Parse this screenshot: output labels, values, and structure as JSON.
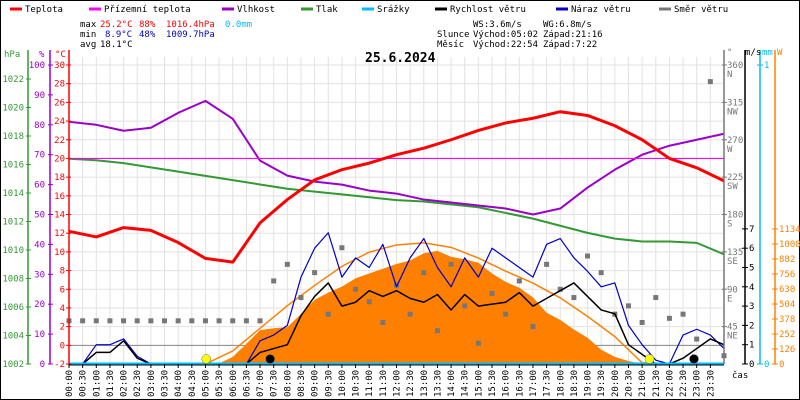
{
  "legend": [
    {
      "label": "Teplota",
      "color": "#ff0000"
    },
    {
      "label": "Přízemní teplota",
      "color": "#ff00ff"
    },
    {
      "label": "Vlhkost",
      "color": "#9900cc"
    },
    {
      "label": "Tlak",
      "color": "#339933"
    },
    {
      "label": "Srážky",
      "color": "#00bbff"
    },
    {
      "label": "Rychlost větru",
      "color": "#000000"
    },
    {
      "label": "Náraz větru",
      "color": "#0000cc"
    },
    {
      "label": "Směr větru",
      "color": "#777777"
    }
  ],
  "stats": {
    "max_label": "max",
    "max_temp": "25.2°C",
    "max_hum": "88%",
    "max_press": "1016.4hPa",
    "max_rain": "0.0mm",
    "min_label": "min",
    "min_temp": "8.9°C",
    "min_hum": "48%",
    "min_press": "1009.7hPa",
    "avg_label": "avg",
    "avg_temp": "18.1°C",
    "ws": "WS:3.6m/s",
    "wg": "WG:6.8m/s",
    "sun_label": "Slunce",
    "sunrise": "Východ:05:02",
    "sunset": "Západ:21:16",
    "moon_label": "Měsíc",
    "moonrise": "Východ:22:54",
    "moonset": "Západ:7:22"
  },
  "chart_data": {
    "type": "line",
    "title": "25.6.2024",
    "xlabel": "čas",
    "x_ticks": [
      "00:00",
      "00:30",
      "01:00",
      "01:30",
      "02:00",
      "02:30",
      "03:00",
      "03:30",
      "04:00",
      "04:30",
      "05:00",
      "05:30",
      "06:00",
      "06:30",
      "07:00",
      "07:30",
      "08:00",
      "08:30",
      "09:00",
      "09:30",
      "10:00",
      "10:30",
      "11:00",
      "11:30",
      "12:00",
      "12:30",
      "13:00",
      "13:30",
      "14:00",
      "14:30",
      "15:00",
      "15:30",
      "16:00",
      "16:30",
      "17:00",
      "17:30",
      "18:00",
      "18:30",
      "19:00",
      "19:30",
      "20:00",
      "20:30",
      "21:00",
      "21:30",
      "22:00",
      "22:30",
      "23:00",
      "23:30"
    ],
    "axes": {
      "pressure": {
        "unit": "hPa",
        "range": [
          1002,
          1022
        ],
        "ticks": [
          1002,
          1004,
          1006,
          1008,
          1010,
          1012,
          1014,
          1016,
          1018,
          1020,
          1022
        ],
        "color": "#339933"
      },
      "humidity": {
        "unit": "%",
        "range": [
          0,
          100
        ],
        "ticks": [
          0,
          10,
          20,
          30,
          40,
          50,
          60,
          70,
          80,
          90,
          100
        ],
        "color": "#9900cc"
      },
      "temperature": {
        "unit": "°C",
        "range": [
          -2,
          30
        ],
        "ticks": [
          -2,
          0,
          2,
          4,
          6,
          8,
          10,
          12,
          14,
          16,
          18,
          20,
          22,
          24,
          26,
          28,
          30
        ],
        "color": "#ff0000"
      },
      "direction": {
        "unit": "°",
        "range": [
          0,
          360
        ],
        "ticks": [
          {
            "v": 45,
            "l": "45",
            "d": "NE"
          },
          {
            "v": 90,
            "l": "90",
            "d": "E"
          },
          {
            "v": 135,
            "l": "135",
            "d": "SE"
          },
          {
            "v": 180,
            "l": "180",
            "d": "S"
          },
          {
            "v": 225,
            "l": "225",
            "d": "SW"
          },
          {
            "v": 270,
            "l": "270",
            "d": "W"
          },
          {
            "v": 315,
            "l": "315",
            "d": "NW"
          },
          {
            "v": 360,
            "l": "360",
            "d": "N"
          }
        ],
        "color": "#777777"
      },
      "wind": {
        "unit": "m/s",
        "range": [
          0,
          7
        ],
        "ticks": [
          0,
          1,
          2,
          3,
          4,
          5,
          6,
          7
        ],
        "color": "#000000"
      },
      "rain": {
        "unit": "mm",
        "range": [
          0,
          1
        ],
        "ticks": [
          0,
          1
        ],
        "color": "#00bbff"
      },
      "solar": {
        "unit": "W",
        "range": [
          0,
          1134
        ],
        "ticks": [
          0,
          126,
          252,
          378,
          504,
          630,
          756,
          882,
          1008,
          1134
        ],
        "color": "#ff8000"
      }
    },
    "series": [
      {
        "name": "Teplota",
        "axis": "temperature",
        "step_h": 1,
        "values": [
          12.2,
          11.6,
          12.6,
          12.3,
          11.0,
          9.3,
          8.9,
          13.1,
          15.6,
          17.7,
          18.8,
          19.5,
          20.4,
          21.1,
          22.0,
          23.0,
          23.8,
          24.3,
          25.0,
          24.6,
          23.5,
          22.0,
          20.0,
          19.0,
          17.6
        ]
      },
      {
        "name": "Přízemní teplota",
        "axis": "temperature",
        "step_h": 24,
        "values": [
          20,
          20
        ]
      },
      {
        "name": "Vlhkost",
        "axis": "humidity",
        "step_h": 1,
        "values": [
          81,
          80,
          78,
          79,
          84,
          88,
          82,
          68,
          63,
          61,
          60,
          58,
          57,
          55,
          54,
          53,
          52,
          50,
          52,
          59,
          65,
          70,
          73,
          75,
          77
        ]
      },
      {
        "name": "Tlak",
        "axis": "pressure",
        "step_h": 1,
        "values": [
          1016.4,
          1016.3,
          1016.1,
          1015.8,
          1015.5,
          1015.2,
          1014.9,
          1014.6,
          1014.3,
          1014.1,
          1013.9,
          1013.7,
          1013.5,
          1013.4,
          1013.2,
          1013.0,
          1012.6,
          1012.2,
          1011.7,
          1011.2,
          1010.8,
          1010.6,
          1010.6,
          1010.5,
          1009.7
        ]
      },
      {
        "name": "Srážky",
        "axis": "rain",
        "step_h": 24,
        "values": [
          0,
          0
        ]
      },
      {
        "name": "Rychlost větru",
        "axis": "wind",
        "step_h": 0.5,
        "values": [
          0,
          0,
          0.6,
          0.6,
          1.2,
          0.3,
          0,
          0,
          0,
          0,
          0,
          0,
          0,
          0,
          0.6,
          0.8,
          1.0,
          2.5,
          3.5,
          4.2,
          3.0,
          3.2,
          3.8,
          3.5,
          3.8,
          3.4,
          3.2,
          3.6,
          2.8,
          3.6,
          3.0,
          3.1,
          3.2,
          3.7,
          3.0,
          3.4,
          3.8,
          4.2,
          3.5,
          2.8,
          2.6,
          1.0,
          0.5,
          0,
          0,
          0.3,
          0.8,
          1.3,
          1.0
        ]
      },
      {
        "name": "Náraz větru",
        "axis": "wind",
        "step_h": 0.5,
        "values": [
          0,
          0,
          1.0,
          1.0,
          1.3,
          0.4,
          0,
          0,
          0,
          0,
          0,
          0,
          0,
          0,
          1.2,
          1.5,
          2.0,
          4.5,
          6.0,
          6.8,
          4.5,
          5.5,
          5.0,
          6.2,
          4.0,
          5.5,
          6.5,
          5.0,
          4.0,
          5.5,
          4.5,
          6.0,
          5.5,
          5.0,
          4.5,
          6.2,
          6.5,
          5.5,
          4.8,
          4.0,
          4.2,
          2.0,
          1.0,
          0.2,
          0,
          1.5,
          1.8,
          1.5,
          0.8
        ]
      },
      {
        "name": "Směr větru",
        "axis": "direction",
        "step_h": 0.5,
        "values": [
          52,
          52,
          52,
          52,
          52,
          52,
          52,
          52,
          52,
          52,
          52,
          52,
          52,
          52,
          52,
          100,
          120,
          80,
          110,
          60,
          140,
          90,
          75,
          50,
          95,
          60,
          110,
          40,
          120,
          70,
          25,
          85,
          60,
          100,
          45,
          120,
          90,
          80,
          130,
          110,
          60,
          70,
          50,
          80,
          55,
          60,
          30,
          340,
          10
        ]
      },
      {
        "axis": "solar",
        "step_h": 0.5,
        "values": [
          0,
          0,
          0,
          0,
          0,
          0,
          0,
          0,
          0,
          0,
          0,
          5,
          60,
          170,
          285,
          300,
          310,
          420,
          540,
          600,
          650,
          720,
          760,
          800,
          840,
          870,
          930,
          950,
          900,
          880,
          850,
          760,
          690,
          640,
          560,
          430,
          370,
          290,
          220,
          120,
          60,
          25,
          0,
          0,
          0,
          0,
          0,
          0,
          0
        ]
      },
      {
        "axis": "solar",
        "step_h": 1,
        "values": [
          0,
          0,
          0,
          0,
          0,
          0,
          110,
          300,
          490,
          660,
          820,
          940,
          1000,
          1017,
          980,
          890,
          780,
          680,
          555,
          400,
          230,
          10,
          0,
          0,
          0
        ]
      }
    ],
    "markers": [
      {
        "type": "sunrise",
        "time": 5.03,
        "color": "#ffff00"
      },
      {
        "type": "sunset",
        "time": 21.27,
        "color": "#ffff00"
      },
      {
        "type": "moonset",
        "time": 7.37,
        "color": "#000000"
      },
      {
        "type": "moonrise",
        "time": 22.9,
        "color": "#000000"
      }
    ],
    "grid": true
  }
}
